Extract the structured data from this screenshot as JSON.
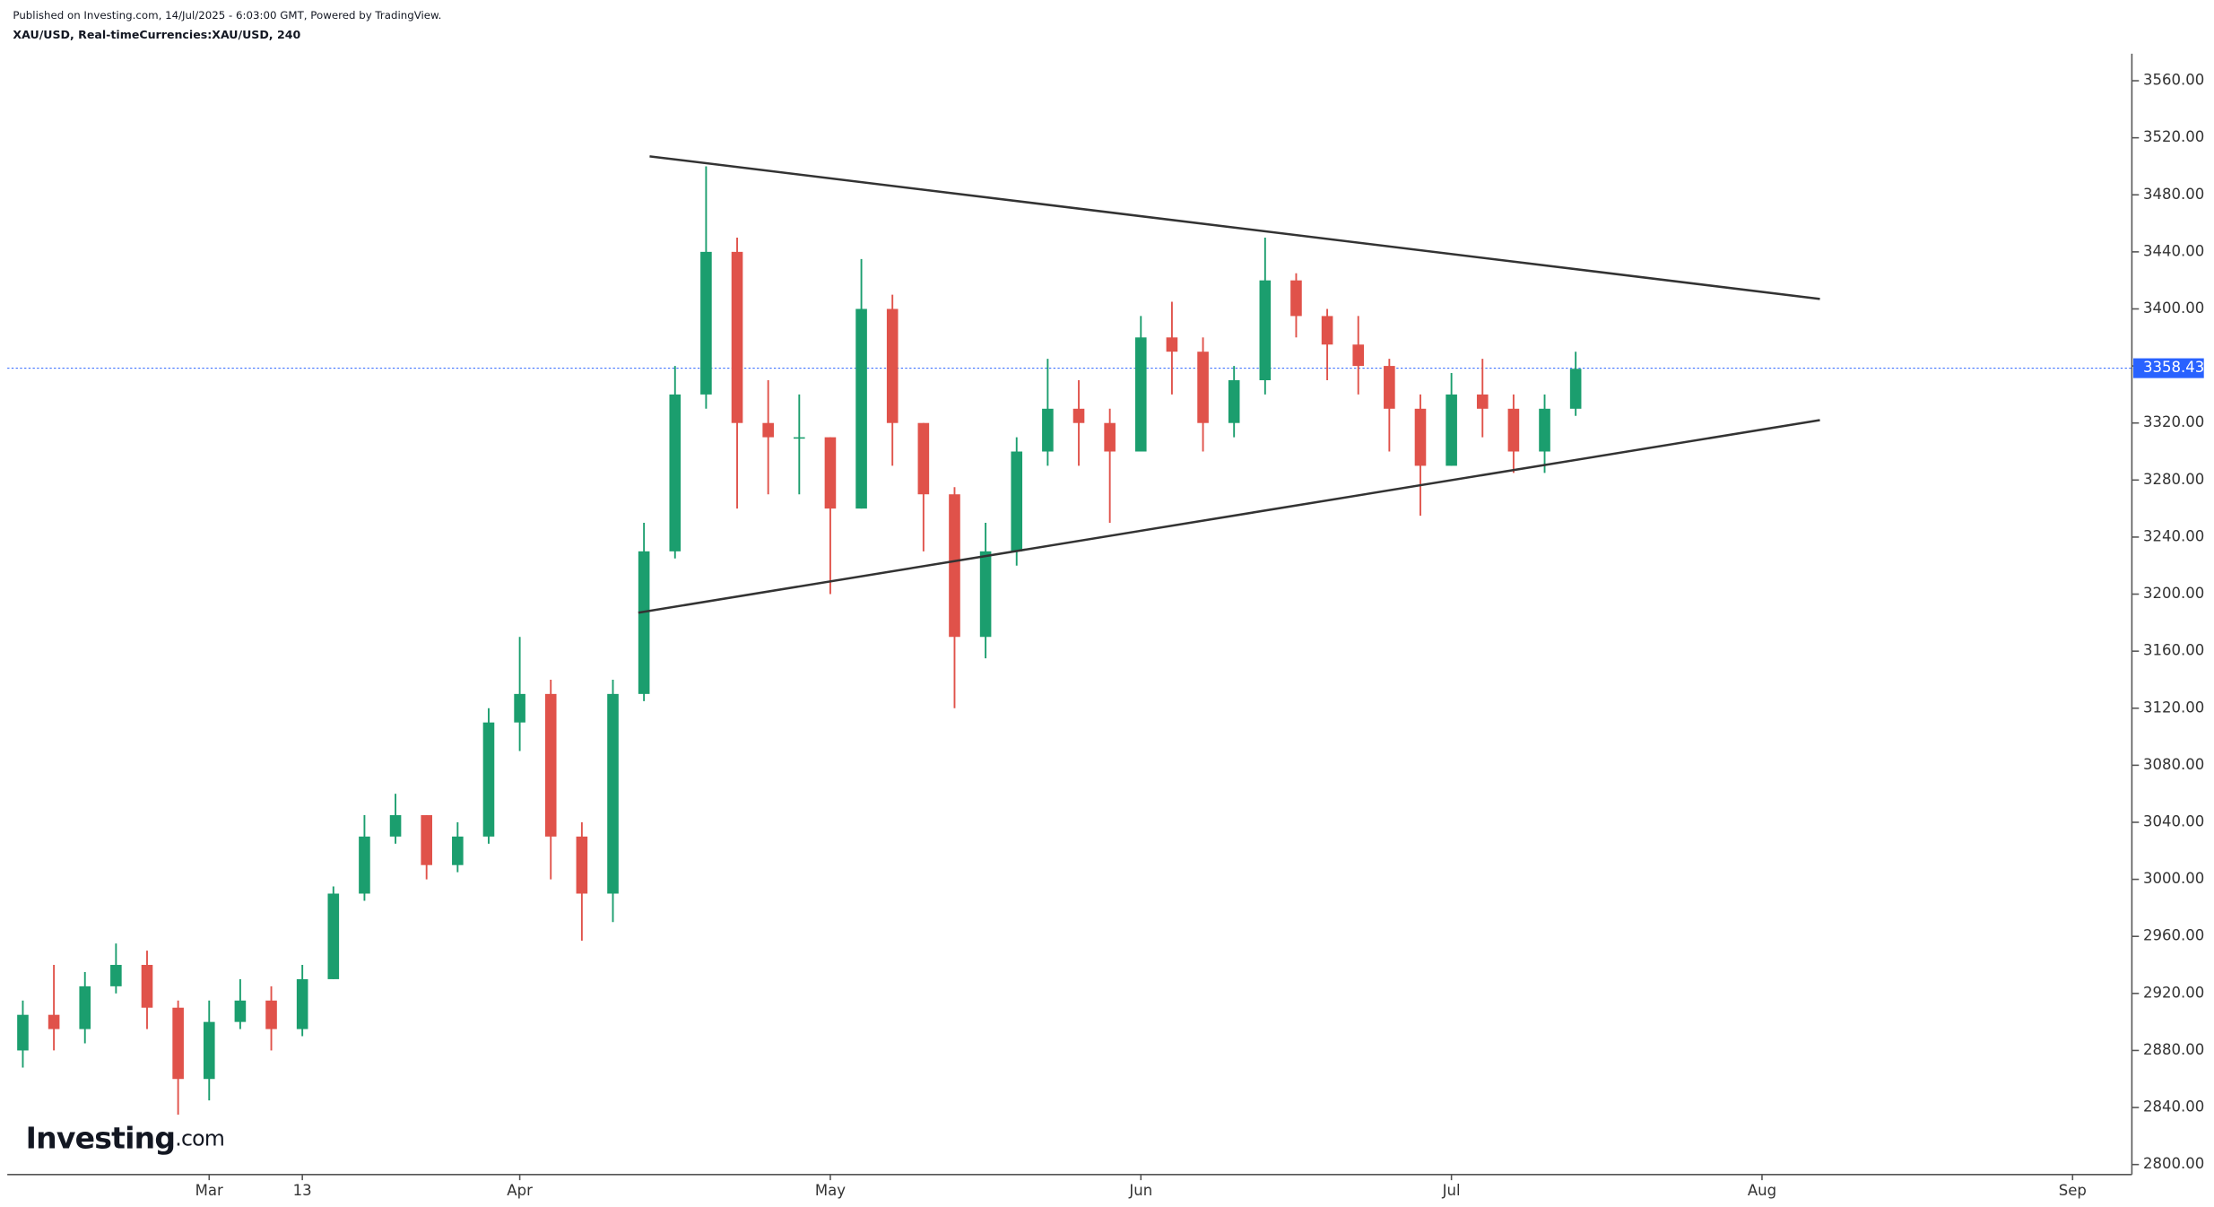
{
  "header": {
    "published": "Published on Investing.com, 14/Jul/2025 - 6:03:00 GMT, Powered by TradingView.",
    "symbol": "XAU/USD, Real-timeCurrencies:XAU/USD, 240"
  },
  "logo": {
    "brand": "Investing",
    "suffix": ".com"
  },
  "chart_data": {
    "type": "candlestick",
    "categories": [
      null,
      null,
      null,
      null,
      null,
      null,
      "Mar",
      null,
      null,
      "13",
      null,
      null,
      null,
      null,
      null,
      null,
      "Apr",
      null,
      null,
      null,
      null,
      null,
      null,
      null,
      null,
      null,
      "May",
      null,
      null,
      null,
      null,
      null,
      null,
      null,
      null,
      null,
      "Jun",
      null,
      null,
      null,
      null,
      null,
      null,
      null,
      null,
      null,
      "Jul",
      null,
      null,
      null,
      null,
      null,
      null,
      null,
      null,
      null,
      "Aug",
      null,
      null,
      null,
      null,
      null,
      null,
      null,
      null,
      null,
      "Sep",
      null
    ],
    "open": [
      2880,
      2905,
      2895,
      2925,
      2940,
      2910,
      2860,
      2900,
      2915,
      2895,
      2930,
      2990,
      3030,
      3045,
      3010,
      3030,
      3110,
      3130,
      3030,
      2990,
      3130,
      3230,
      3340,
      3440,
      3320,
      3310,
      3310,
      3260,
      3400,
      3320,
      3270,
      3170,
      3230,
      3300,
      3330,
      3320,
      3300,
      3380,
      3370,
      3320,
      3350,
      3420,
      3395,
      3375,
      3360,
      3330,
      3290,
      3340,
      3330,
      3300,
      3330,
      null,
      null,
      null,
      null,
      null,
      null,
      null,
      null,
      null,
      null,
      null,
      null,
      null,
      null,
      null,
      null,
      null
    ],
    "high": [
      2915,
      2940,
      2935,
      2955,
      2950,
      2915,
      2915,
      2930,
      2925,
      2940,
      2995,
      3045,
      3060,
      3045,
      3040,
      3120,
      3170,
      3140,
      3040,
      3140,
      3250,
      3360,
      3500,
      3450,
      3350,
      3340,
      3310,
      3435,
      3410,
      3320,
      3275,
      3250,
      3310,
      3365,
      3350,
      3330,
      3395,
      3405,
      3380,
      3360,
      3450,
      3425,
      3400,
      3395,
      3365,
      3340,
      3355,
      3365,
      3340,
      3340,
      3370,
      null,
      null,
      null,
      null,
      null,
      null,
      null,
      null,
      null,
      null,
      null,
      null,
      null,
      null,
      null,
      null,
      null
    ],
    "low": [
      2868,
      2880,
      2885,
      2920,
      2895,
      2835,
      2845,
      2895,
      2880,
      2890,
      2930,
      2985,
      3025,
      3000,
      3005,
      3025,
      3090,
      3000,
      2957,
      2970,
      3125,
      3225,
      3330,
      3260,
      3270,
      3270,
      3200,
      3260,
      3290,
      3230,
      3120,
      3155,
      3220,
      3290,
      3290,
      3250,
      3300,
      3340,
      3300,
      3310,
      3340,
      3380,
      3350,
      3340,
      3300,
      3255,
      3290,
      3310,
      3285,
      3285,
      3325,
      null,
      null,
      null,
      null,
      null,
      null,
      null,
      null,
      null,
      null,
      null,
      null,
      null,
      null,
      null,
      null,
      null
    ],
    "close": [
      2905,
      2895,
      2925,
      2940,
      2910,
      2860,
      2900,
      2915,
      2895,
      2930,
      2990,
      3030,
      3045,
      3010,
      3030,
      3110,
      3130,
      3030,
      2990,
      3130,
      3230,
      3340,
      3440,
      3320,
      3310,
      3310,
      3260,
      3400,
      3320,
      3270,
      3170,
      3230,
      3300,
      3330,
      3320,
      3300,
      3380,
      3370,
      3320,
      3350,
      3420,
      3395,
      3375,
      3360,
      3330,
      3290,
      3340,
      3330,
      3300,
      3330,
      3358,
      null,
      null,
      null,
      null,
      null,
      null,
      null,
      null,
      null,
      null,
      null,
      null,
      null,
      null,
      null,
      null,
      null
    ],
    "up_color": "#1b9e6e",
    "down_color": "#e0524a",
    "ylim": [
      2793,
      3579
    ],
    "yticks": [
      {
        "value": 2800,
        "label": "2800.00"
      },
      {
        "value": 2840,
        "label": "2840.00"
      },
      {
        "value": 2880,
        "label": "2880.00"
      },
      {
        "value": 2920,
        "label": "2920.00"
      },
      {
        "value": 2960,
        "label": "2960.00"
      },
      {
        "value": 3000,
        "label": "3000.00"
      },
      {
        "value": 3040,
        "label": "3040.00"
      },
      {
        "value": 3080,
        "label": "3080.00"
      },
      {
        "value": 3120,
        "label": "3120.00"
      },
      {
        "value": 3160,
        "label": "3160.00"
      },
      {
        "value": 3200,
        "label": "3200.00"
      },
      {
        "value": 3240,
        "label": "3240.00"
      },
      {
        "value": 3280,
        "label": "3280.00"
      },
      {
        "value": 3320,
        "label": "3320.00"
      },
      {
        "value": 3360,
        "label": "3360.00"
      },
      {
        "value": 3400,
        "label": "3400.00"
      },
      {
        "value": 3440,
        "label": "3440.00"
      },
      {
        "value": 3480,
        "label": "3480.00"
      },
      {
        "value": 3520,
        "label": "3520.00"
      },
      {
        "value": 3560,
        "label": "3560.00"
      }
    ],
    "last_price": 3358.43,
    "last_price_color": "#2962ff",
    "trendlines": [
      {
        "values": [
          3507,
          3407
        ]
      },
      {
        "values": [
          3187,
          3322
        ]
      }
    ],
    "grid": false
  }
}
